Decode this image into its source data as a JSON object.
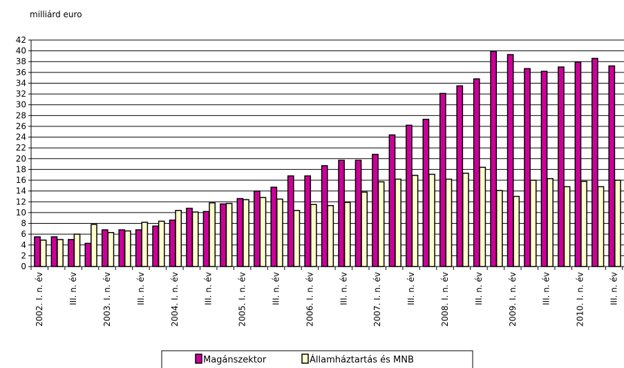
{
  "chart_data": {
    "type": "bar",
    "unit_label": "milliárd euro",
    "ylim": [
      0,
      42
    ],
    "ytick_step": 2,
    "grid": true,
    "legend_position": "bottom",
    "categories": [
      "2002. I. n. év",
      "",
      "III. n. év",
      "",
      "2003. I. n. év",
      "",
      "III. n. év",
      "",
      "2004. I. n. év",
      "",
      "III. n. év",
      "",
      "2005. I. n. év",
      "",
      "III. n. év",
      "",
      "2006. I. n. év",
      "",
      "III. n. év",
      "",
      "2007. I. n. év",
      "",
      "III. n. év",
      "",
      "2008. I. n. év",
      "",
      "III. n. év",
      "",
      "2009. I. n. év",
      "",
      "III. n. év",
      "",
      "2010. I. n. év",
      "",
      "III. n. év"
    ],
    "series": [
      {
        "name": "Magánszektor",
        "color": "#cc0099",
        "values": [
          5.5,
          5.5,
          5.0,
          4.3,
          6.8,
          6.8,
          6.8,
          7.5,
          8.6,
          10.8,
          10.2,
          11.6,
          12.6,
          14.0,
          14.7,
          16.8,
          16.8,
          18.7,
          19.7,
          19.7,
          20.8,
          24.4,
          26.2,
          27.3,
          32.1,
          33.5,
          34.8,
          39.9,
          39.3,
          36.7,
          36.2,
          37.0,
          37.9,
          38.6,
          37.2
        ]
      },
      {
        "name": "Államháztartás és MNB",
        "color": "#ffffcc",
        "values": [
          4.9,
          5.0,
          6.0,
          7.8,
          6.3,
          6.6,
          8.2,
          8.4,
          10.4,
          10.1,
          11.8,
          11.7,
          12.4,
          12.8,
          12.5,
          10.4,
          11.5,
          11.3,
          11.9,
          13.8,
          15.7,
          16.2,
          16.9,
          17.1,
          16.2,
          17.3,
          18.4,
          14.1,
          13.0,
          16.0,
          16.3,
          14.8,
          15.8,
          14.8,
          16.0
        ]
      }
    ]
  }
}
